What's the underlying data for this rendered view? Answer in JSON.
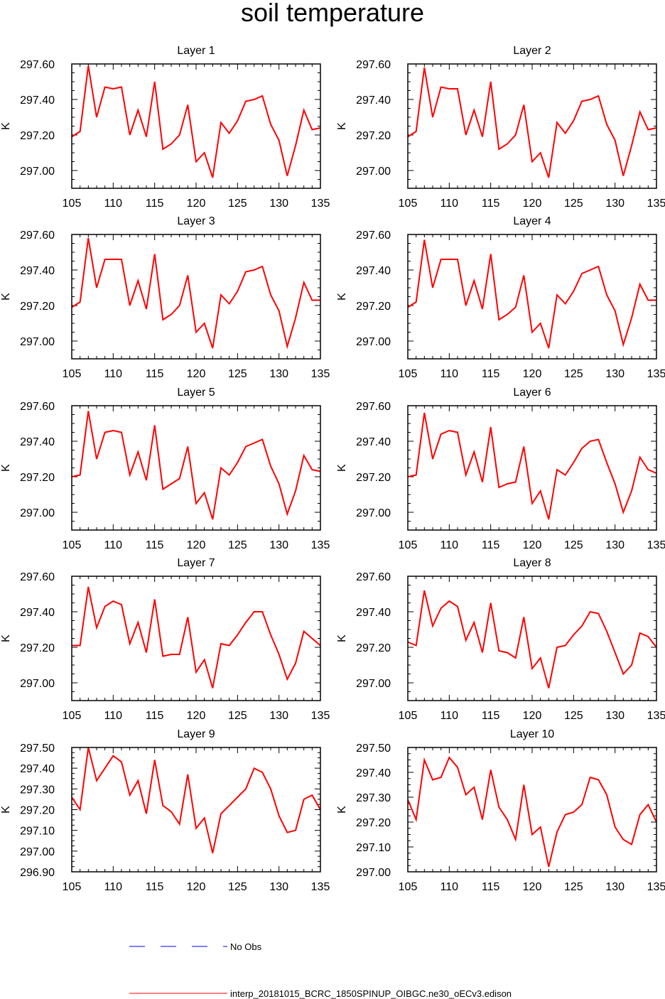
{
  "figure": {
    "title": "soil temperature",
    "colors": {
      "model": "#ff0000",
      "obs": "#0000ff"
    },
    "legend": [
      {
        "style": "dashed",
        "color": "#0000ff",
        "label": "No Obs"
      },
      {
        "style": "solid",
        "color": "#ff0000",
        "label": "interp_20181015_BCRC_1850SPINUP_OIBGC.ne30_oECv3.edison"
      }
    ]
  },
  "chart_data": [
    {
      "type": "line",
      "title": "Layer 1",
      "ylabel": "K",
      "xlim": [
        105,
        135
      ],
      "ylim": [
        296.9,
        297.6
      ],
      "xticks": [
        105,
        110,
        115,
        120,
        125,
        130,
        135
      ],
      "yticks": [
        297.0,
        297.2,
        297.4,
        297.6
      ],
      "x": [
        105,
        106,
        107,
        108,
        109,
        110,
        111,
        112,
        113,
        114,
        115,
        116,
        117,
        118,
        119,
        120,
        121,
        122,
        123,
        124,
        125,
        126,
        127,
        128,
        129,
        130,
        131,
        132,
        133,
        134,
        135
      ],
      "series": [
        {
          "name": "interp_20181015_BCRC_1850SPINUP_OIBGC.ne30_oECv3.edison",
          "values": [
            297.19,
            297.22,
            297.59,
            297.3,
            297.47,
            297.46,
            297.47,
            297.2,
            297.34,
            297.19,
            297.5,
            297.12,
            297.15,
            297.2,
            297.37,
            297.05,
            297.1,
            296.96,
            297.27,
            297.21,
            297.28,
            297.39,
            297.4,
            297.42,
            297.26,
            297.17,
            296.97,
            297.14,
            297.34,
            297.23,
            297.24
          ]
        }
      ]
    },
    {
      "type": "line",
      "title": "Layer 2",
      "ylabel": "K",
      "xlim": [
        105,
        135
      ],
      "ylim": [
        296.9,
        297.6
      ],
      "xticks": [
        105,
        110,
        115,
        120,
        125,
        130,
        135
      ],
      "yticks": [
        297.0,
        297.2,
        297.4,
        297.6
      ],
      "x": [
        105,
        106,
        107,
        108,
        109,
        110,
        111,
        112,
        113,
        114,
        115,
        116,
        117,
        118,
        119,
        120,
        121,
        122,
        123,
        124,
        125,
        126,
        127,
        128,
        129,
        130,
        131,
        132,
        133,
        134,
        135
      ],
      "series": [
        {
          "name": "interp_20181015_BCRC_1850SPINUP_OIBGC.ne30_oECv3.edison",
          "values": [
            297.19,
            297.22,
            297.58,
            297.3,
            297.47,
            297.46,
            297.46,
            297.2,
            297.34,
            297.19,
            297.5,
            297.12,
            297.15,
            297.2,
            297.37,
            297.05,
            297.1,
            296.96,
            297.27,
            297.21,
            297.28,
            297.39,
            297.4,
            297.42,
            297.26,
            297.17,
            296.97,
            297.14,
            297.33,
            297.23,
            297.24
          ]
        }
      ]
    },
    {
      "type": "line",
      "title": "Layer 3",
      "ylabel": "K",
      "xlim": [
        105,
        135
      ],
      "ylim": [
        296.9,
        297.6
      ],
      "xticks": [
        105,
        110,
        115,
        120,
        125,
        130,
        135
      ],
      "yticks": [
        297.0,
        297.2,
        297.4,
        297.6
      ],
      "x": [
        105,
        106,
        107,
        108,
        109,
        110,
        111,
        112,
        113,
        114,
        115,
        116,
        117,
        118,
        119,
        120,
        121,
        122,
        123,
        124,
        125,
        126,
        127,
        128,
        129,
        130,
        131,
        132,
        133,
        134,
        135
      ],
      "series": [
        {
          "name": "interp_20181015_BCRC_1850SPINUP_OIBGC.ne30_oECv3.edison",
          "values": [
            297.19,
            297.22,
            297.58,
            297.3,
            297.46,
            297.46,
            297.46,
            297.2,
            297.34,
            297.18,
            297.49,
            297.12,
            297.15,
            297.2,
            297.37,
            297.05,
            297.1,
            296.96,
            297.26,
            297.21,
            297.28,
            297.39,
            297.4,
            297.42,
            297.26,
            297.17,
            296.97,
            297.13,
            297.33,
            297.23,
            297.23
          ]
        }
      ]
    },
    {
      "type": "line",
      "title": "Layer 4",
      "ylabel": "K",
      "xlim": [
        105,
        135
      ],
      "ylim": [
        296.9,
        297.6
      ],
      "xticks": [
        105,
        110,
        115,
        120,
        125,
        130,
        135
      ],
      "yticks": [
        297.0,
        297.2,
        297.4,
        297.6
      ],
      "x": [
        105,
        106,
        107,
        108,
        109,
        110,
        111,
        112,
        113,
        114,
        115,
        116,
        117,
        118,
        119,
        120,
        121,
        122,
        123,
        124,
        125,
        126,
        127,
        128,
        129,
        130,
        131,
        132,
        133,
        134,
        135
      ],
      "series": [
        {
          "name": "interp_20181015_BCRC_1850SPINUP_OIBGC.ne30_oECv3.edison",
          "values": [
            297.19,
            297.22,
            297.57,
            297.3,
            297.46,
            297.46,
            297.46,
            297.2,
            297.34,
            297.18,
            297.49,
            297.12,
            297.15,
            297.19,
            297.37,
            297.05,
            297.1,
            296.96,
            297.26,
            297.21,
            297.28,
            297.38,
            297.4,
            297.42,
            297.26,
            297.17,
            296.98,
            297.13,
            297.32,
            297.23,
            297.23
          ]
        }
      ]
    },
    {
      "type": "line",
      "title": "Layer 5",
      "ylabel": "K",
      "xlim": [
        105,
        135
      ],
      "ylim": [
        296.9,
        297.6
      ],
      "xticks": [
        105,
        110,
        115,
        120,
        125,
        130,
        135
      ],
      "yticks": [
        297.0,
        297.2,
        297.4,
        297.6
      ],
      "x": [
        105,
        106,
        107,
        108,
        109,
        110,
        111,
        112,
        113,
        114,
        115,
        116,
        117,
        118,
        119,
        120,
        121,
        122,
        123,
        124,
        125,
        126,
        127,
        128,
        129,
        130,
        131,
        132,
        133,
        134,
        135
      ],
      "series": [
        {
          "name": "interp_20181015_BCRC_1850SPINUP_OIBGC.ne30_oECv3.edison",
          "values": [
            297.2,
            297.21,
            297.57,
            297.3,
            297.45,
            297.46,
            297.45,
            297.21,
            297.34,
            297.18,
            297.49,
            297.13,
            297.16,
            297.19,
            297.37,
            297.05,
            297.11,
            296.96,
            297.25,
            297.21,
            297.28,
            297.37,
            297.39,
            297.41,
            297.26,
            297.16,
            296.99,
            297.12,
            297.32,
            297.24,
            297.23
          ]
        }
      ]
    },
    {
      "type": "line",
      "title": "Layer 6",
      "ylabel": "K",
      "xlim": [
        105,
        135
      ],
      "ylim": [
        296.9,
        297.6
      ],
      "xticks": [
        105,
        110,
        115,
        120,
        125,
        130,
        135
      ],
      "yticks": [
        297.0,
        297.2,
        297.4,
        297.6
      ],
      "x": [
        105,
        106,
        107,
        108,
        109,
        110,
        111,
        112,
        113,
        114,
        115,
        116,
        117,
        118,
        119,
        120,
        121,
        122,
        123,
        124,
        125,
        126,
        127,
        128,
        129,
        130,
        131,
        132,
        133,
        134,
        135
      ],
      "series": [
        {
          "name": "interp_20181015_BCRC_1850SPINUP_OIBGC.ne30_oECv3.edison",
          "values": [
            297.2,
            297.21,
            297.56,
            297.3,
            297.44,
            297.46,
            297.45,
            297.21,
            297.34,
            297.17,
            297.48,
            297.14,
            297.16,
            297.17,
            297.37,
            297.05,
            297.12,
            296.96,
            297.24,
            297.21,
            297.28,
            297.36,
            297.4,
            297.41,
            297.28,
            297.16,
            297.0,
            297.12,
            297.31,
            297.24,
            297.22
          ]
        }
      ]
    },
    {
      "type": "line",
      "title": "Layer 7",
      "ylabel": "K",
      "xlim": [
        105,
        135
      ],
      "ylim": [
        296.9,
        297.6
      ],
      "xticks": [
        105,
        110,
        115,
        120,
        125,
        130,
        135
      ],
      "yticks": [
        297.0,
        297.2,
        297.4,
        297.6
      ],
      "x": [
        105,
        106,
        107,
        108,
        109,
        110,
        111,
        112,
        113,
        114,
        115,
        116,
        117,
        118,
        119,
        120,
        121,
        122,
        123,
        124,
        125,
        126,
        127,
        128,
        129,
        130,
        131,
        132,
        133,
        134,
        135
      ],
      "series": [
        {
          "name": "interp_20181015_BCRC_1850SPINUP_OIBGC.ne30_oECv3.edison",
          "values": [
            297.21,
            297.21,
            297.54,
            297.31,
            297.43,
            297.46,
            297.44,
            297.22,
            297.34,
            297.17,
            297.47,
            297.15,
            297.16,
            297.16,
            297.37,
            297.06,
            297.13,
            296.97,
            297.22,
            297.21,
            297.27,
            297.34,
            297.4,
            297.4,
            297.27,
            297.16,
            297.02,
            297.11,
            297.29,
            297.25,
            297.21
          ]
        }
      ]
    },
    {
      "type": "line",
      "title": "Layer 8",
      "ylabel": "K",
      "xlim": [
        105,
        135
      ],
      "ylim": [
        296.9,
        297.6
      ],
      "xticks": [
        105,
        110,
        115,
        120,
        125,
        130,
        135
      ],
      "yticks": [
        297.0,
        297.2,
        297.4,
        297.6
      ],
      "x": [
        105,
        106,
        107,
        108,
        109,
        110,
        111,
        112,
        113,
        114,
        115,
        116,
        117,
        118,
        119,
        120,
        121,
        122,
        123,
        124,
        125,
        126,
        127,
        128,
        129,
        130,
        131,
        132,
        133,
        134,
        135
      ],
      "series": [
        {
          "name": "interp_20181015_BCRC_1850SPINUP_OIBGC.ne30_oECv3.edison",
          "values": [
            297.23,
            297.21,
            297.52,
            297.32,
            297.42,
            297.46,
            297.43,
            297.24,
            297.34,
            297.17,
            297.45,
            297.18,
            297.17,
            297.14,
            297.37,
            297.08,
            297.14,
            296.97,
            297.2,
            297.21,
            297.27,
            297.32,
            297.4,
            297.39,
            297.29,
            297.17,
            297.05,
            297.1,
            297.28,
            297.26,
            297.2
          ]
        }
      ]
    },
    {
      "type": "line",
      "title": "Layer 9",
      "ylabel": "K",
      "xlim": [
        105,
        135
      ],
      "ylim": [
        296.9,
        297.5
      ],
      "xticks": [
        105,
        110,
        115,
        120,
        125,
        130,
        135
      ],
      "yticks": [
        296.9,
        297.0,
        297.1,
        297.2,
        297.3,
        297.4,
        297.5
      ],
      "x": [
        105,
        106,
        107,
        108,
        109,
        110,
        111,
        112,
        113,
        114,
        115,
        116,
        117,
        118,
        119,
        120,
        121,
        122,
        123,
        124,
        125,
        126,
        127,
        128,
        129,
        130,
        131,
        132,
        133,
        134,
        135
      ],
      "series": [
        {
          "name": "interp_20181015_BCRC_1850SPINUP_OIBGC.ne30_oECv3.edison",
          "values": [
            297.26,
            297.2,
            297.5,
            297.34,
            297.4,
            297.46,
            297.43,
            297.27,
            297.34,
            297.18,
            297.44,
            297.22,
            297.19,
            297.13,
            297.37,
            297.11,
            297.16,
            296.99,
            297.18,
            297.22,
            297.26,
            297.3,
            297.4,
            297.38,
            297.3,
            297.17,
            297.09,
            297.1,
            297.25,
            297.27,
            297.2
          ]
        }
      ]
    },
    {
      "type": "line",
      "title": "Layer 10",
      "ylabel": "K",
      "xlim": [
        105,
        135
      ],
      "ylim": [
        297.0,
        297.5
      ],
      "xticks": [
        105,
        110,
        115,
        120,
        125,
        130,
        135
      ],
      "yticks": [
        297.0,
        297.1,
        297.2,
        297.3,
        297.4,
        297.5
      ],
      "x": [
        105,
        106,
        107,
        108,
        109,
        110,
        111,
        112,
        113,
        114,
        115,
        116,
        117,
        118,
        119,
        120,
        121,
        122,
        123,
        124,
        125,
        126,
        127,
        128,
        129,
        130,
        131,
        132,
        133,
        134,
        135
      ],
      "series": [
        {
          "name": "interp_20181015_BCRC_1850SPINUP_OIBGC.ne30_oECv3.edison",
          "values": [
            297.29,
            297.21,
            297.45,
            297.37,
            297.38,
            297.46,
            297.42,
            297.31,
            297.34,
            297.21,
            297.41,
            297.26,
            297.21,
            297.13,
            297.35,
            297.15,
            297.18,
            297.02,
            297.16,
            297.23,
            297.24,
            297.27,
            297.38,
            297.37,
            297.31,
            297.18,
            297.13,
            297.11,
            297.23,
            297.27,
            297.2
          ]
        }
      ]
    }
  ]
}
